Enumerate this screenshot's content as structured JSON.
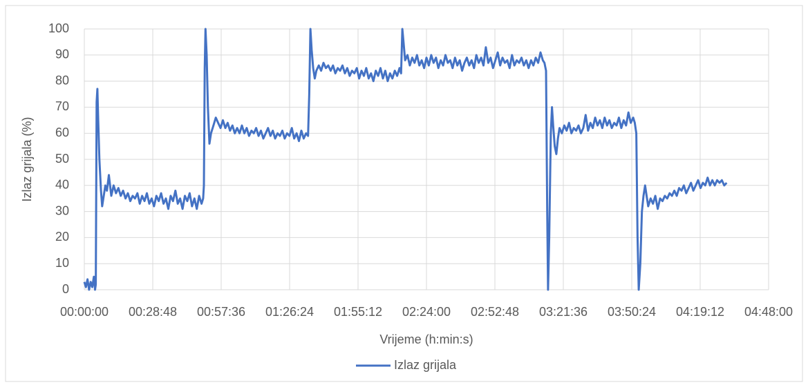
{
  "chart_data": {
    "type": "line",
    "xlabel": "Vrijeme (h:min:s)",
    "ylabel": "Izlaz grijala (%)",
    "xlim": [
      0,
      17280
    ],
    "xticks": [
      {
        "value": 0,
        "label": "00:00:00"
      },
      {
        "value": 1728,
        "label": "00:28:48"
      },
      {
        "value": 3456,
        "label": "00:57:36"
      },
      {
        "value": 5184,
        "label": "01:26:24"
      },
      {
        "value": 6912,
        "label": "01:55:12"
      },
      {
        "value": 8640,
        "label": "02:24:00"
      },
      {
        "value": 10368,
        "label": "02:52:48"
      },
      {
        "value": 12096,
        "label": "03:21:36"
      },
      {
        "value": 13824,
        "label": "03:50:24"
      },
      {
        "value": 15552,
        "label": "04:19:12"
      },
      {
        "value": 17280,
        "label": "04:48:00"
      }
    ],
    "ylim": [
      0,
      100
    ],
    "yticks": [
      0,
      10,
      20,
      30,
      40,
      50,
      60,
      70,
      80,
      90,
      100
    ],
    "grid": true,
    "legend": "bottom",
    "x": [
      0,
      40,
      80,
      120,
      160,
      200,
      240,
      270,
      290,
      310,
      330,
      350,
      380,
      420,
      450,
      490,
      530,
      570,
      620,
      680,
      740,
      800,
      860,
      920,
      980,
      1040,
      1100,
      1160,
      1220,
      1280,
      1340,
      1400,
      1460,
      1520,
      1580,
      1640,
      1700,
      1760,
      1820,
      1880,
      1940,
      2000,
      2060,
      2120,
      2180,
      2240,
      2300,
      2360,
      2420,
      2480,
      2540,
      2600,
      2660,
      2720,
      2780,
      2840,
      2900,
      2960,
      3000,
      3020,
      3040,
      3060,
      3090,
      3120,
      3160,
      3200,
      3260,
      3320,
      3380,
      3440,
      3500,
      3560,
      3620,
      3680,
      3740,
      3800,
      3860,
      3920,
      3980,
      4040,
      4100,
      4160,
      4220,
      4280,
      4340,
      4400,
      4460,
      4520,
      4580,
      4640,
      4700,
      4760,
      4820,
      4880,
      4940,
      5000,
      5060,
      5120,
      5180,
      5240,
      5300,
      5360,
      5420,
      5480,
      5540,
      5600,
      5650,
      5680,
      5710,
      5740,
      5780,
      5820,
      5860,
      5920,
      5980,
      6040,
      6100,
      6160,
      6220,
      6280,
      6340,
      6400,
      6460,
      6520,
      6580,
      6640,
      6700,
      6760,
      6820,
      6880,
      6940,
      7000,
      7060,
      7120,
      7180,
      7240,
      7300,
      7360,
      7420,
      7480,
      7540,
      7600,
      7660,
      7720,
      7780,
      7840,
      7900,
      7960,
      8000,
      8030,
      8060,
      8100,
      8160,
      8220,
      8280,
      8340,
      8400,
      8460,
      8520,
      8580,
      8640,
      8700,
      8760,
      8820,
      8880,
      8940,
      9000,
      9060,
      9120,
      9180,
      9240,
      9300,
      9360,
      9420,
      9480,
      9540,
      9600,
      9660,
      9720,
      9780,
      9840,
      9900,
      9960,
      10020,
      10080,
      10140,
      10200,
      10260,
      10320,
      10380,
      10440,
      10500,
      10560,
      10620,
      10680,
      10740,
      10800,
      10860,
      10920,
      10980,
      11040,
      11100,
      11160,
      11220,
      11280,
      11340,
      11400,
      11460,
      11520,
      11580,
      11620,
      11660,
      11690,
      11710,
      11740,
      11780,
      11810,
      11840,
      11880,
      11920,
      11960,
      12000,
      12060,
      12120,
      12180,
      12240,
      12300,
      12360,
      12420,
      12480,
      12540,
      12600,
      12660,
      12720,
      12780,
      12840,
      12900,
      12960,
      13020,
      13080,
      13140,
      13200,
      13260,
      13320,
      13380,
      13440,
      13500,
      13560,
      13620,
      13680,
      13740,
      13800,
      13860,
      13900,
      13940,
      13970,
      14000,
      14040,
      14080,
      14120,
      14160,
      14200,
      14240,
      14300,
      14360,
      14420,
      14480,
      14540,
      14600,
      14660,
      14720,
      14780,
      14840,
      14900,
      14960,
      15020,
      15080,
      15140,
      15200,
      15260,
      15320,
      15380,
      15440,
      15500,
      15560,
      15620,
      15680,
      15740,
      15800,
      15860,
      15920,
      15980,
      16040,
      16100,
      16160,
      16220
    ],
    "series": [
      {
        "name": "Izlaz grijala",
        "color": "#4472c4",
        "values": [
          3,
          1,
          4,
          0,
          3,
          1,
          5,
          0,
          2,
          72,
          77,
          65,
          50,
          38,
          32,
          36,
          40,
          38,
          44,
          36,
          40,
          37,
          39,
          36,
          38,
          35,
          37,
          34,
          36,
          35,
          37,
          33,
          36,
          34,
          37,
          33,
          35,
          32,
          36,
          34,
          37,
          33,
          35,
          31,
          36,
          34,
          38,
          33,
          35,
          31,
          36,
          34,
          37,
          32,
          35,
          31,
          36,
          33,
          35,
          40,
          85,
          100,
          90,
          70,
          56,
          60,
          63,
          66,
          64,
          62,
          65,
          62,
          64,
          61,
          63,
          60,
          62,
          60,
          63,
          60,
          62,
          59,
          61,
          60,
          62,
          59,
          61,
          58,
          60,
          62,
          59,
          61,
          58,
          60,
          59,
          61,
          58,
          60,
          59,
          62,
          58,
          60,
          57,
          61,
          58,
          60,
          59,
          75,
          100,
          92,
          85,
          81,
          84,
          86,
          84,
          87,
          85,
          86,
          84,
          86,
          83,
          85,
          84,
          86,
          83,
          85,
          82,
          84,
          83,
          85,
          81,
          84,
          82,
          85,
          81,
          83,
          80,
          84,
          82,
          85,
          81,
          84,
          80,
          83,
          81,
          84,
          82,
          85,
          83,
          100,
          95,
          88,
          90,
          86,
          89,
          87,
          90,
          86,
          88,
          85,
          89,
          86,
          90,
          87,
          89,
          85,
          88,
          86,
          90,
          87,
          88,
          85,
          89,
          86,
          88,
          84,
          87,
          89,
          86,
          88,
          85,
          90,
          87,
          89,
          86,
          93,
          87,
          89,
          85,
          88,
          91,
          86,
          89,
          87,
          88,
          85,
          90,
          86,
          88,
          87,
          89,
          86,
          88,
          85,
          88,
          86,
          89,
          87,
          91,
          88,
          87,
          84,
          30,
          0,
          20,
          60,
          70,
          63,
          55,
          52,
          58,
          62,
          60,
          63,
          61,
          64,
          60,
          62,
          61,
          63,
          60,
          62,
          67,
          61,
          64,
          62,
          66,
          63,
          65,
          62,
          66,
          63,
          65,
          62,
          64,
          63,
          66,
          62,
          65,
          63,
          68,
          64,
          66,
          64,
          60,
          20,
          0,
          10,
          30,
          36,
          40,
          36,
          32,
          35,
          33,
          36,
          31,
          35,
          34,
          36,
          35,
          37,
          36,
          38,
          36,
          39,
          38,
          40,
          37,
          39,
          41,
          38,
          40,
          42,
          39,
          41,
          40,
          43,
          40,
          42,
          40,
          42,
          41,
          42,
          40,
          41
        ]
      }
    ]
  }
}
